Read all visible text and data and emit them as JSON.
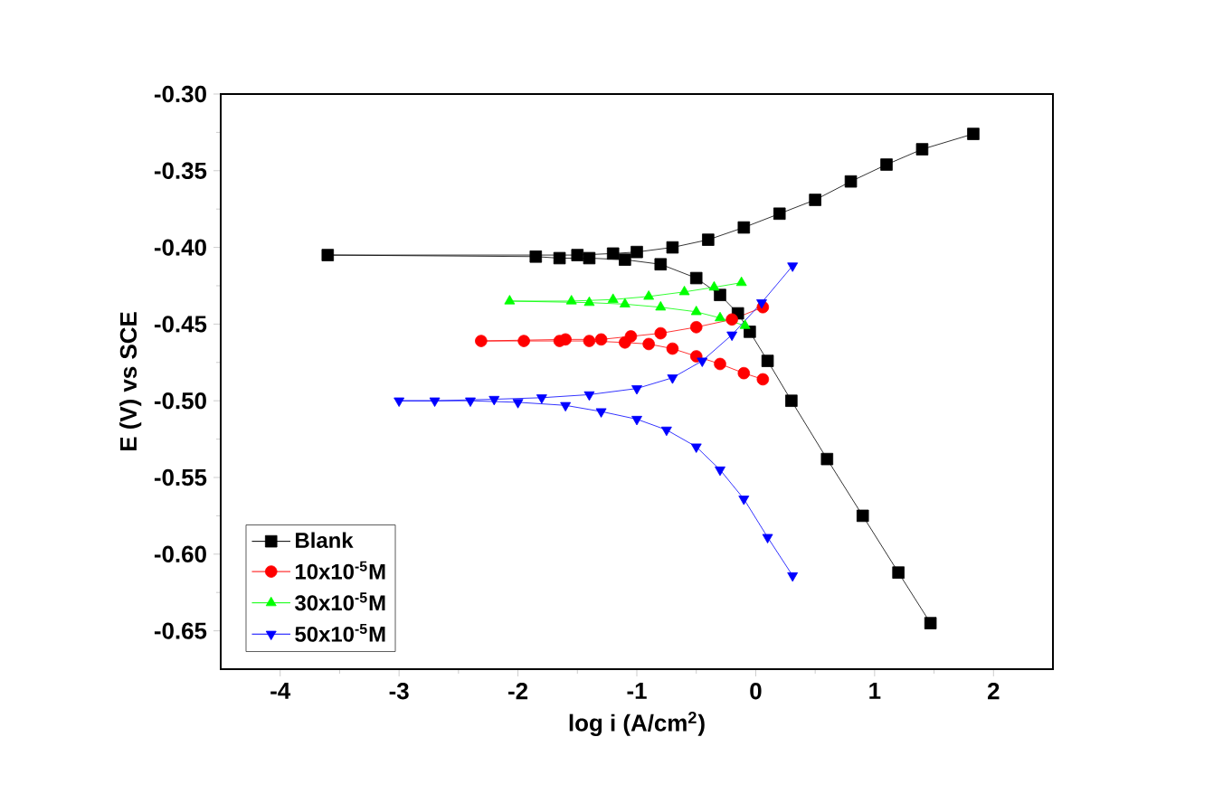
{
  "chart_data": {
    "type": "line",
    "xlabel": "log i (A/cm$^{2}$)",
    "ylabel": "E (V) vs SCE",
    "xlim": [
      -4.5,
      2.5
    ],
    "ylim": [
      -0.675,
      -0.3
    ],
    "xticks": [
      -4,
      -3,
      -2,
      -1,
      0,
      1,
      2
    ],
    "yticks": [
      {
        "value": -0.65,
        "label": "-0.65"
      },
      {
        "value": -0.6,
        "label": "-0.60"
      },
      {
        "value": -0.55,
        "label": "-0.55"
      },
      {
        "value": -0.5,
        "label": "-0.50"
      },
      {
        "value": -0.45,
        "label": "-0.45"
      },
      {
        "value": -0.4,
        "label": "-0.40"
      },
      {
        "value": -0.35,
        "label": "-0.35"
      },
      {
        "value": -0.3,
        "label": "-0.30"
      }
    ],
    "legend": "bottom left",
    "grid": false,
    "line_style": "solid",
    "series": [
      {
        "name": "Blank",
        "color": "#000000",
        "marker": "square",
        "x": [
          1.47,
          1.2,
          0.9,
          0.6,
          0.3,
          0.1,
          -0.05,
          -0.15,
          -0.3,
          -0.5,
          -0.8,
          -1.1,
          -1.4,
          -1.65,
          -1.85,
          -3.6,
          -1.5,
          -1.2,
          -1.0,
          -0.7,
          -0.4,
          -0.1,
          0.2,
          0.5,
          0.8,
          1.1,
          1.4,
          1.83
        ],
        "values": [
          -0.645,
          -0.612,
          -0.575,
          -0.538,
          -0.5,
          -0.474,
          -0.455,
          -0.443,
          -0.431,
          -0.42,
          -0.411,
          -0.408,
          -0.407,
          -0.407,
          -0.406,
          -0.405,
          -0.405,
          -0.404,
          -0.403,
          -0.4,
          -0.395,
          -0.387,
          -0.378,
          -0.369,
          -0.357,
          -0.346,
          -0.336,
          -0.326
        ]
      },
      {
        "name": "10x10$^{-5}$M",
        "color": "#ff0000",
        "marker": "circle",
        "x": [
          0.06,
          -0.1,
          -0.3,
          -0.5,
          -0.7,
          -0.9,
          -1.1,
          -1.4,
          -1.65,
          -1.95,
          -2.31,
          -1.6,
          -1.3,
          -1.05,
          -0.8,
          -0.5,
          -0.2,
          0.06
        ],
        "values": [
          -0.486,
          -0.482,
          -0.476,
          -0.471,
          -0.466,
          -0.463,
          -0.462,
          -0.461,
          -0.461,
          -0.461,
          -0.461,
          -0.46,
          -0.46,
          -0.458,
          -0.456,
          -0.452,
          -0.447,
          -0.439
        ]
      },
      {
        "name": "30x10$^{-5}$M",
        "color": "#00ff00",
        "marker": "triangle",
        "x": [
          -0.09,
          -0.3,
          -0.5,
          -0.8,
          -1.1,
          -1.4,
          -2.07,
          -1.55,
          -1.2,
          -0.9,
          -0.6,
          -0.35,
          -0.12
        ],
        "values": [
          -0.451,
          -0.446,
          -0.442,
          -0.439,
          -0.437,
          -0.436,
          -0.435,
          -0.435,
          -0.434,
          -0.432,
          -0.429,
          -0.426,
          -0.423
        ]
      },
      {
        "name": "50x10$^{-5}$M",
        "color": "#0000ff",
        "marker": "triangle-down",
        "x": [
          0.31,
          0.1,
          -0.1,
          -0.3,
          -0.5,
          -0.75,
          -1.0,
          -1.3,
          -1.6,
          -2.0,
          -2.4,
          -3.0,
          -2.7,
          -2.2,
          -1.8,
          -1.4,
          -1.0,
          -0.7,
          -0.45,
          -0.2,
          0.05,
          0.31
        ],
        "values": [
          -0.614,
          -0.589,
          -0.564,
          -0.545,
          -0.53,
          -0.519,
          -0.512,
          -0.507,
          -0.503,
          -0.501,
          -0.5,
          -0.5,
          -0.5,
          -0.499,
          -0.498,
          -0.496,
          -0.492,
          -0.485,
          -0.474,
          -0.457,
          -0.436,
          -0.412
        ]
      }
    ]
  }
}
